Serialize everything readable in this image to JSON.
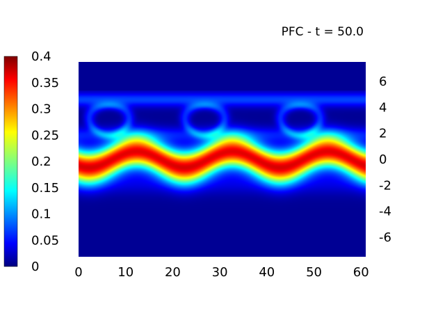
{
  "chart_data": {
    "type": "heatmap",
    "title": "PFC - t = 50.0",
    "xlabel": "",
    "ylabel": "",
    "xlim": [
      0,
      61
    ],
    "ylim": [
      -7.5,
      7.5
    ],
    "x_ticks": [
      "0",
      "10",
      "20",
      "30",
      "40",
      "50",
      "60"
    ],
    "y_ticks": [
      "-6",
      "-4",
      "-2",
      "0",
      "2",
      "4",
      "6"
    ],
    "colorbar": {
      "min": 0,
      "max": 0.4,
      "ticks": [
        "0",
        "0.05",
        "0.1",
        "0.15",
        "0.2",
        "0.25",
        "0.3",
        "0.35",
        "0.4"
      ],
      "colormap": "jet"
    },
    "field": {
      "description": "band",
      "band_center_y": 0,
      "band_peak_value": 0.36,
      "band_wavelength_x": 20.3,
      "band_amplitude_y": 0.6,
      "vortex_row_center_y": 3.2,
      "vortex_wavelength_x": 20.3,
      "vortex_value": 0.06,
      "background_value": 0.0
    }
  }
}
